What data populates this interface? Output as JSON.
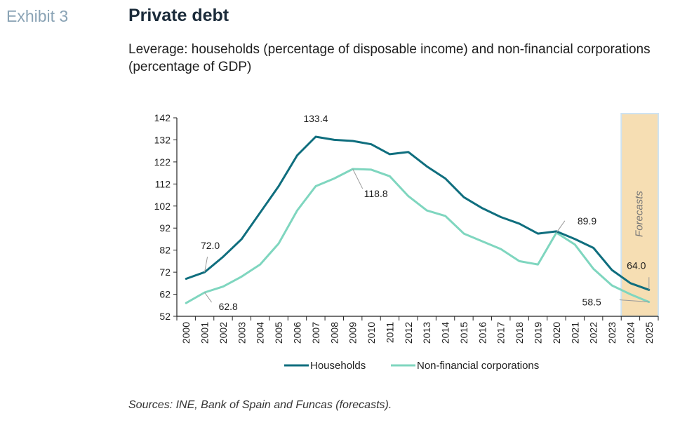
{
  "header": {
    "exhibit": "Exhibit 3",
    "title": "Private debt",
    "subtitle": "Leverage: households (percentage of disposable income) and non-financial corporations (percentage of GDP)"
  },
  "footer": {
    "source": "Sources: INE, Bank of Spain and Funcas (forecasts)."
  },
  "colors": {
    "households": "#0f6e7e",
    "nfc": "#7fd6bf",
    "forecast_band": "#f6deb3",
    "forecast_border": "#cfe3f1"
  },
  "chart_data": {
    "type": "line",
    "x": [
      "2000",
      "2001",
      "2002",
      "2003",
      "2004",
      "2005",
      "2006",
      "2007",
      "2008",
      "2009",
      "2010",
      "2011",
      "2012",
      "2013",
      "2014",
      "2015",
      "2016",
      "2017",
      "2018",
      "2019",
      "2020",
      "2021",
      "2022",
      "2023",
      "2024",
      "2025"
    ],
    "yticks": [
      52,
      62,
      72,
      82,
      92,
      102,
      112,
      122,
      132,
      142
    ],
    "ylim": [
      52,
      142
    ],
    "forecast_label": "Forecasts",
    "forecast_range": [
      "2024",
      "2025"
    ],
    "series": [
      {
        "name": "Households",
        "color": "#0f6e7e",
        "values": [
          69.0,
          72.0,
          79.0,
          87.0,
          99.0,
          111.0,
          125.0,
          133.4,
          132.0,
          131.5,
          130.0,
          125.5,
          126.5,
          120.0,
          114.5,
          106.0,
          101.0,
          97.0,
          94.0,
          89.5,
          90.5,
          87.0,
          83.0,
          73.0,
          67.0,
          64.0
        ]
      },
      {
        "name": "Non-financial corporations",
        "color": "#7fd6bf",
        "values": [
          58.0,
          62.8,
          65.5,
          70.0,
          75.5,
          85.0,
          100.0,
          111.0,
          114.5,
          118.8,
          118.5,
          115.5,
          106.5,
          100.0,
          97.5,
          89.5,
          86.0,
          82.5,
          77.0,
          75.5,
          89.9,
          84.5,
          73.5,
          66.0,
          62.0,
          58.5
        ]
      }
    ],
    "annotations": [
      {
        "text": "72.0",
        "series": 0,
        "index": 1
      },
      {
        "text": "133.4",
        "series": 0,
        "index": 7
      },
      {
        "text": "64.0",
        "series": 0,
        "index": 25
      },
      {
        "text": "62.8",
        "series": 1,
        "index": 1
      },
      {
        "text": "118.8",
        "series": 1,
        "index": 9
      },
      {
        "text": "89.9",
        "series": 1,
        "index": 20
      },
      {
        "text": "58.5",
        "series": 1,
        "index": 25
      }
    ],
    "legend": {
      "position": "bottom"
    }
  }
}
